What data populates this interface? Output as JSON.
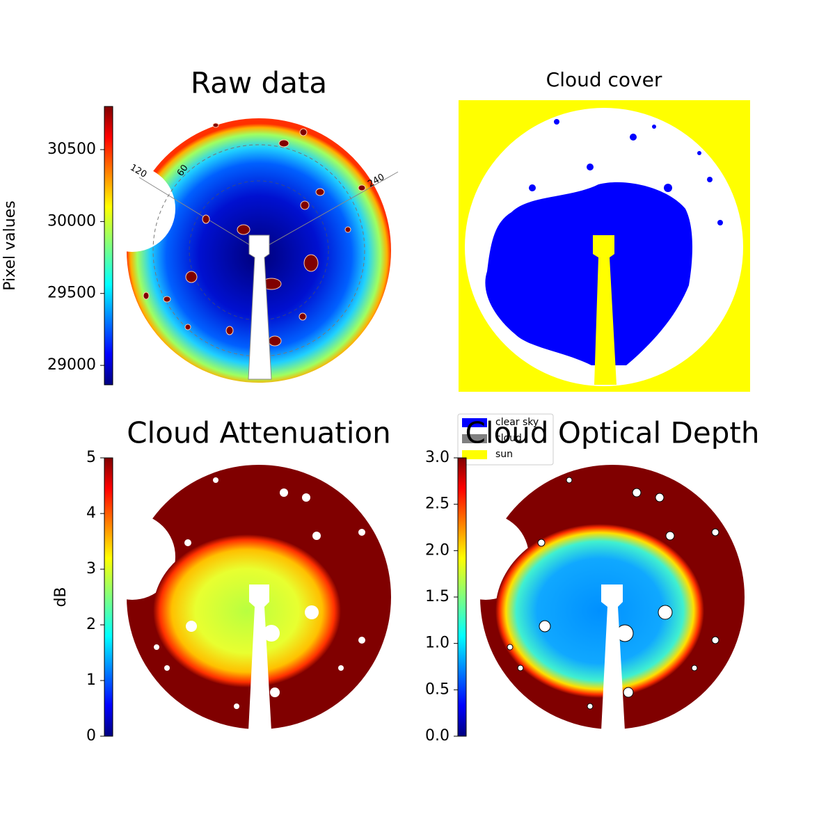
{
  "chart_data": [
    {
      "type": "image",
      "title": "Raw data",
      "colorbar_label": "Pixel values",
      "colormap": "jet",
      "ylim": [
        28865,
        30800
      ],
      "yticks": [
        29000,
        29500,
        30000,
        30500
      ],
      "annotations": [
        "120",
        "60",
        "240"
      ]
    },
    {
      "type": "image",
      "title": "Cloud cover",
      "series": [
        {
          "name": "clear sky",
          "color": "#0000ff"
        },
        {
          "name": "cloud",
          "color": "#808080"
        },
        {
          "name": "sun",
          "color": "#ffff00"
        }
      ]
    },
    {
      "type": "image",
      "title": "Cloud Attenuation",
      "colorbar_label": "dB",
      "colormap": "jet",
      "ylim": [
        0,
        5
      ],
      "yticks": [
        0,
        1,
        2,
        3,
        4,
        5
      ]
    },
    {
      "type": "image",
      "title": "Cloud Optical Depth",
      "colormap": "jet",
      "ylim": [
        0,
        3
      ],
      "yticks": [
        {
          "value": 0,
          "label": "0.0"
        },
        0.5,
        {
          "value": 1,
          "label": "1.0"
        },
        1.5,
        {
          "value": 2,
          "label": "2.0"
        },
        2.5,
        {
          "value": 3,
          "label": "3.0"
        }
      ]
    }
  ]
}
